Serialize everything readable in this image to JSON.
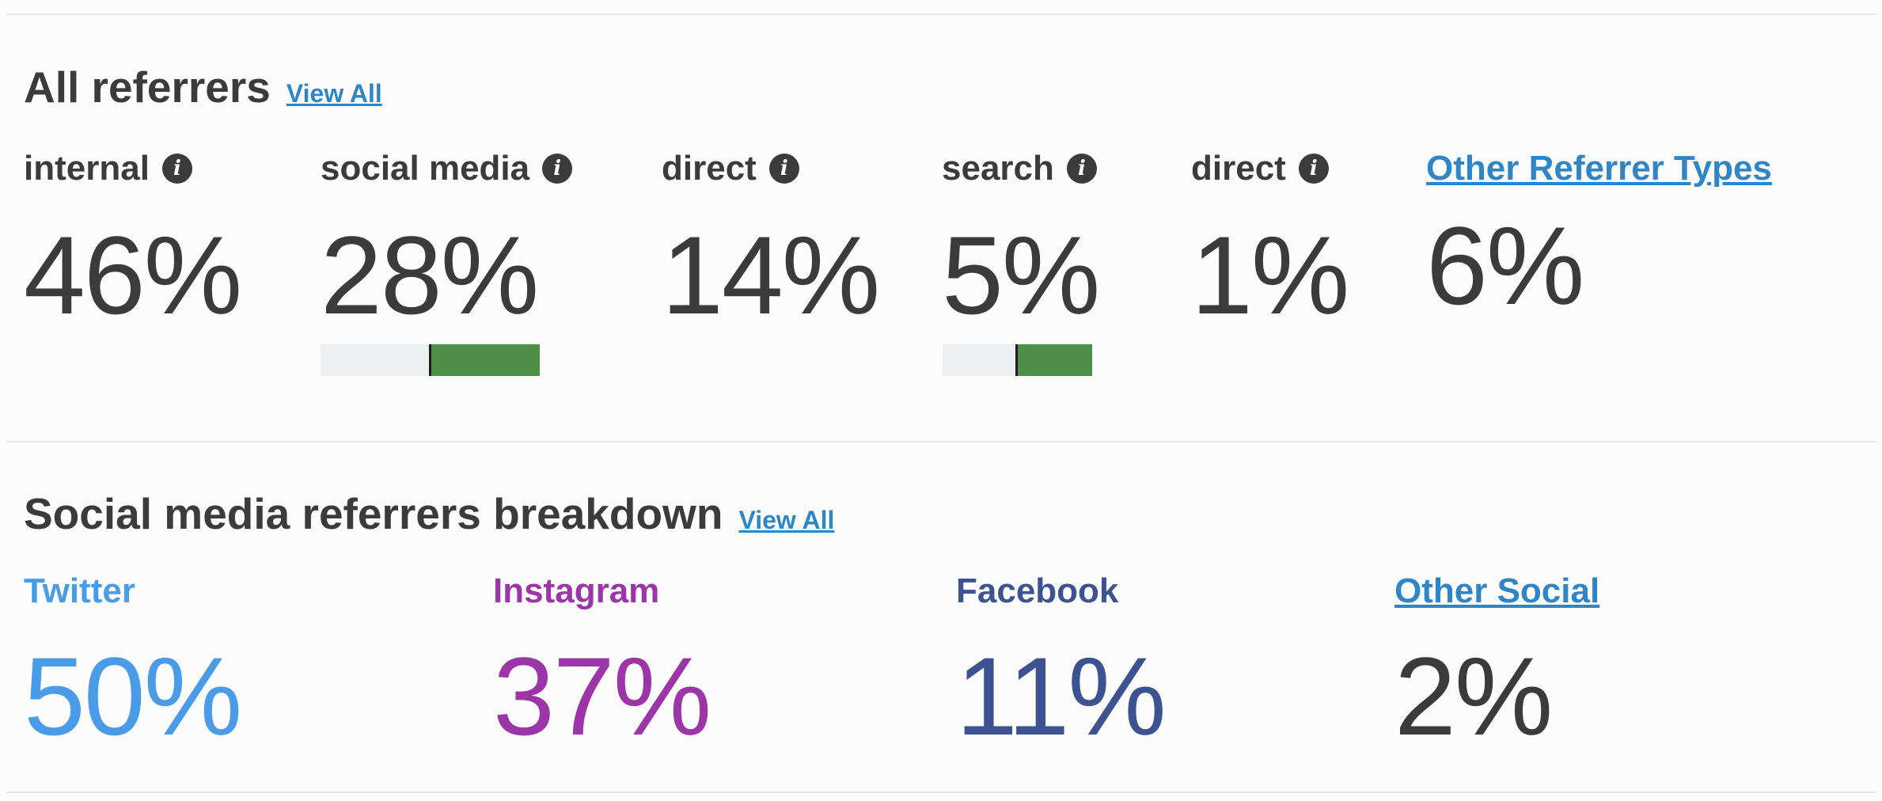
{
  "all_referrers": {
    "title": "All referrers",
    "view_all": "View All",
    "metrics": [
      {
        "label": "internal",
        "value": "46%"
      },
      {
        "label": "social media",
        "value": "28%"
      },
      {
        "label": "direct",
        "value": "14%"
      },
      {
        "label": "search",
        "value": "5%"
      },
      {
        "label": "direct",
        "value": "1%"
      }
    ],
    "other": {
      "label": "Other Referrer Types",
      "value": "6%"
    }
  },
  "social_breakdown": {
    "title": "Social media referrers breakdown",
    "view_all": "View All",
    "metrics": [
      {
        "label": "Twitter",
        "value": "50%",
        "color": "#4a9ce8"
      },
      {
        "label": "Instagram",
        "value": "37%",
        "color": "#9b35a8"
      },
      {
        "label": "Facebook",
        "value": "11%",
        "color": "#3d5291"
      }
    ],
    "other": {
      "label": "Other Social",
      "value": "2%"
    }
  },
  "colors": {
    "link": "#2e86c8",
    "text": "#3b3b3b",
    "bar_fill": "#4d8f46",
    "bar_track": "#eeeff1"
  }
}
